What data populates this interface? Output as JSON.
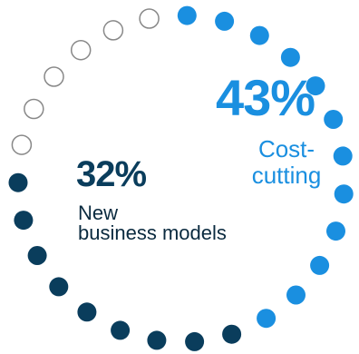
{
  "chart_data": {
    "type": "pie",
    "style": "dot-ring",
    "total_dots": 27,
    "segments": [
      {
        "percent": "43%",
        "label": "Cost-\ncutting",
        "dots": 12,
        "color": "#1a8fe0"
      },
      {
        "percent": "32%",
        "label": "New\nbusiness models",
        "dots": 9,
        "color": "#0a3d5c"
      },
      {
        "percent": "",
        "label": "",
        "dots": 6,
        "color": "none",
        "stroke": "#888888"
      }
    ]
  }
}
